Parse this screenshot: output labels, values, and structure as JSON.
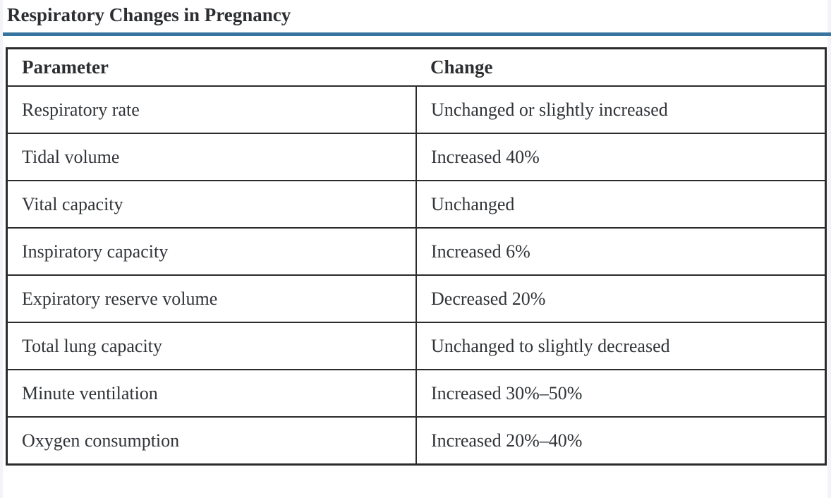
{
  "page": {
    "title": "Respiratory Changes in Pregnancy",
    "accent_color": "#37749f",
    "border_color": "#2b2b2b"
  },
  "table": {
    "columns": [
      "Parameter",
      "Change"
    ],
    "rows": [
      {
        "parameter": "Respiratory rate",
        "change": "Unchanged or slightly increased"
      },
      {
        "parameter": "Tidal volume",
        "change": "Increased 40%"
      },
      {
        "parameter": "Vital capacity",
        "change": "Unchanged"
      },
      {
        "parameter": "Inspiratory capacity",
        "change": "Increased 6%"
      },
      {
        "parameter": "Expiratory reserve volume",
        "change": "Decreased 20%"
      },
      {
        "parameter": "Total lung capacity",
        "change": "Unchanged to slightly decreased"
      },
      {
        "parameter": "Minute ventilation",
        "change": "Increased 30%–50%"
      },
      {
        "parameter": "Oxygen consumption",
        "change": "Increased 20%–40%"
      }
    ]
  }
}
